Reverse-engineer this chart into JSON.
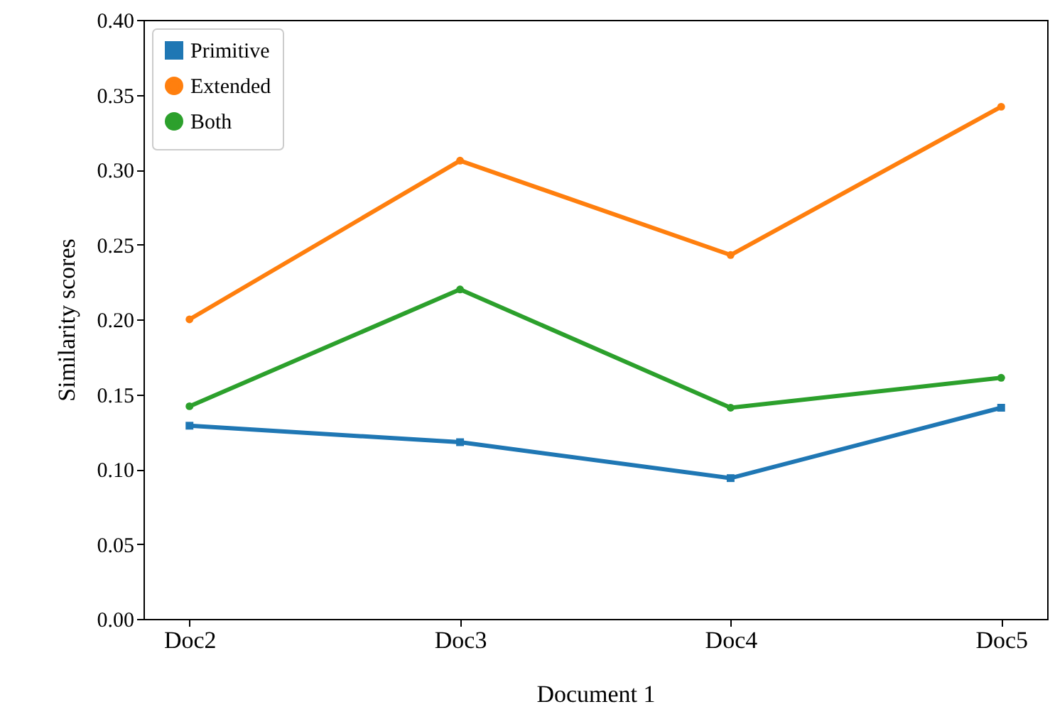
{
  "chart_data": {
    "type": "line",
    "xlabel": "Document 1",
    "ylabel": "Similarity scores",
    "categories": [
      "Doc2",
      "Doc3",
      "Doc4",
      "Doc5"
    ],
    "series": [
      {
        "name": "Primitive",
        "color": "#1f77b4",
        "marker": "square",
        "values": [
          0.129,
          0.118,
          0.094,
          0.141
        ]
      },
      {
        "name": "Extended",
        "color": "#ff7f0e",
        "marker": "circle",
        "values": [
          0.2,
          0.306,
          0.243,
          0.342
        ]
      },
      {
        "name": "Both",
        "color": "#2ca02c",
        "marker": "circle",
        "values": [
          0.142,
          0.22,
          0.141,
          0.161
        ]
      }
    ],
    "ylim": [
      0,
      0.4
    ],
    "yticks": [
      {
        "value": 0,
        "label": "0.00"
      },
      {
        "value": 0.05,
        "label": "0.05"
      },
      {
        "value": 0.1,
        "label": "0.10"
      },
      {
        "value": 0.15,
        "label": "0.15"
      },
      {
        "value": 0.2,
        "label": "0.20"
      },
      {
        "value": 0.25,
        "label": "0.25"
      },
      {
        "value": 0.3,
        "label": "0.30"
      },
      {
        "value": 0.35,
        "label": "0.35"
      },
      {
        "value": 0.4,
        "label": "0.40"
      }
    ],
    "grid": false,
    "legend": "top left",
    "line_style": "solid"
  }
}
